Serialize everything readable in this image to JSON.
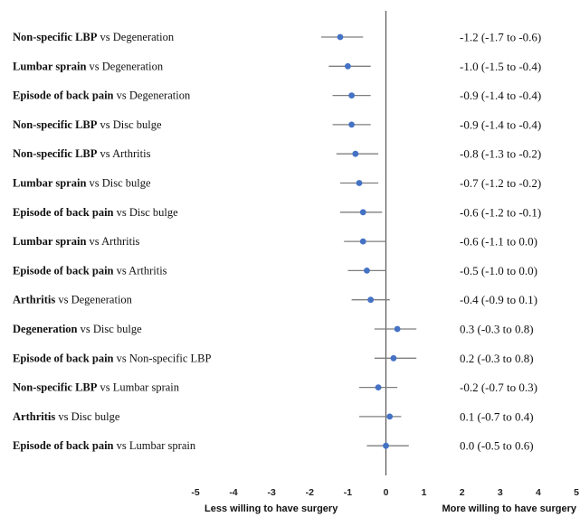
{
  "chart_data": {
    "type": "forest",
    "xlim": [
      -5,
      5
    ],
    "xticks": [
      "-5",
      "-4",
      "-3",
      "-2",
      "-1",
      "0",
      "1",
      "2",
      "3",
      "4",
      "5"
    ],
    "reference_line": 0,
    "point_color": "#4472c4",
    "ci_color": "#7f7f7f",
    "left_direction_label": "Less willing to have surgery",
    "right_direction_label": "More willing to have surgery",
    "rows": [
      {
        "bold": "Non-specific LBP",
        "rest": " vs Degeneration",
        "estimate": -1.2,
        "low": -1.7,
        "high": -0.6,
        "text": "-1.2 (-1.7 to -0.6)"
      },
      {
        "bold": "Lumbar sprain",
        "rest": " vs Degeneration",
        "estimate": -1.0,
        "low": -1.5,
        "high": -0.4,
        "text": "-1.0 (-1.5 to -0.4)"
      },
      {
        "bold": "Episode of back pain",
        "rest": " vs Degeneration",
        "estimate": -0.9,
        "low": -1.4,
        "high": -0.4,
        "text": "-0.9 (-1.4 to -0.4)"
      },
      {
        "bold": "Non-specific LBP",
        "rest": " vs Disc bulge",
        "estimate": -0.9,
        "low": -1.4,
        "high": -0.4,
        "text": "-0.9 (-1.4 to -0.4)"
      },
      {
        "bold": "Non-specific LBP",
        "rest": " vs Arthritis",
        "estimate": -0.8,
        "low": -1.3,
        "high": -0.2,
        "text": "-0.8 (-1.3 to -0.2)"
      },
      {
        "bold": "Lumbar sprain",
        "rest": " vs Disc bulge",
        "estimate": -0.7,
        "low": -1.2,
        "high": -0.2,
        "text": "-0.7 (-1.2 to -0.2)"
      },
      {
        "bold": "Episode of back pain",
        "rest": " vs Disc bulge",
        "estimate": -0.6,
        "low": -1.2,
        "high": -0.1,
        "text": "-0.6 (-1.2 to -0.1)"
      },
      {
        "bold": "Lumbar sprain",
        "rest": " vs Arthritis",
        "estimate": -0.6,
        "low": -1.1,
        "high": 0.0,
        "text": "-0.6 (-1.1 to 0.0)"
      },
      {
        "bold": "Episode of back pain",
        "rest": " vs Arthritis",
        "estimate": -0.5,
        "low": -1.0,
        "high": 0.0,
        "text": "-0.5 (-1.0 to 0.0)"
      },
      {
        "bold": "Arthritis",
        "rest": " vs Degeneration",
        "estimate": -0.4,
        "low": -0.9,
        "high": 0.1,
        "text": "-0.4 (-0.9 to 0.1)"
      },
      {
        "bold": "Degeneration",
        "rest": " vs Disc bulge",
        "estimate": 0.3,
        "low": -0.3,
        "high": 0.8,
        "text": "0.3 (-0.3 to 0.8)"
      },
      {
        "bold": "Episode of back pain",
        "rest": " vs Non-specific LBP",
        "estimate": 0.2,
        "low": -0.3,
        "high": 0.8,
        "text": "0.2 (-0.3 to 0.8)"
      },
      {
        "bold": "Non-specific LBP",
        "rest": " vs Lumbar sprain",
        "estimate": -0.2,
        "low": -0.7,
        "high": 0.3,
        "text": "-0.2 (-0.7 to 0.3)"
      },
      {
        "bold": "Arthritis",
        "rest": " vs Disc bulge",
        "estimate": 0.1,
        "low": -0.7,
        "high": 0.4,
        "text": "0.1 (-0.7 to 0.4)"
      },
      {
        "bold": "Episode of back pain",
        "rest": " vs Lumbar sprain",
        "estimate": 0.0,
        "low": -0.5,
        "high": 0.6,
        "text": "0.0 (-0.5 to 0.6)"
      }
    ]
  }
}
